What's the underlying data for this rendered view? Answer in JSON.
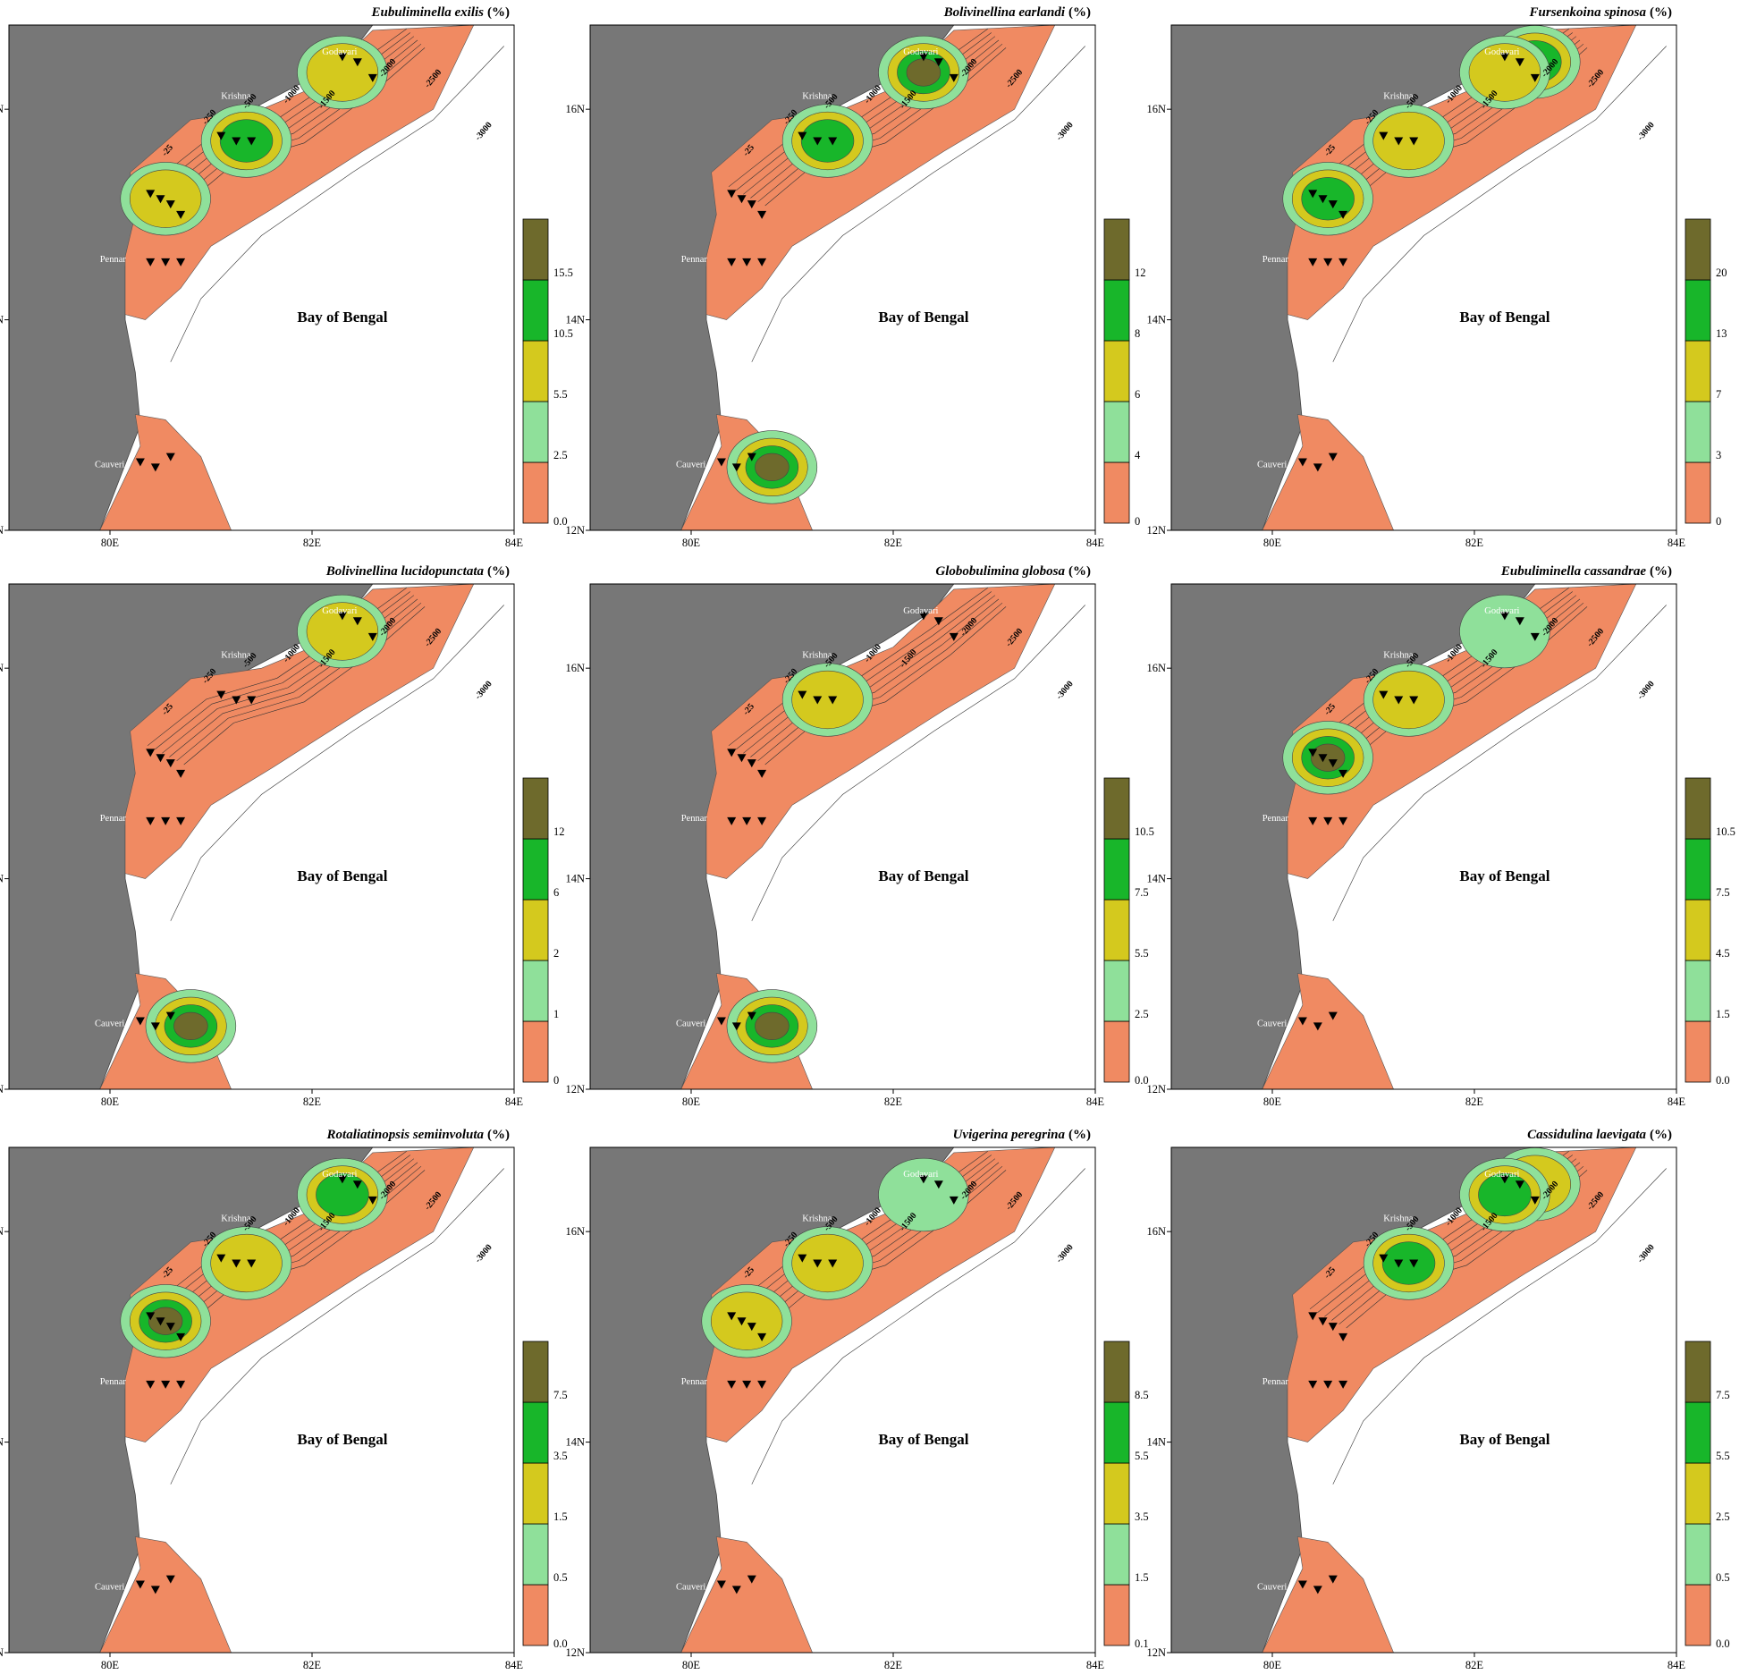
{
  "map_common": {
    "x_tick_labels": [
      "80E",
      "82E",
      "84E"
    ],
    "y_tick_labels": [
      "16N",
      "14N",
      "12N"
    ],
    "place_label": "Bay of Bengal",
    "rivers": [
      "Godavari",
      "Krishna",
      "Pennar",
      "Cauveri"
    ],
    "depth_labels": [
      "-25",
      "-250",
      "-500",
      "-1000",
      "-1500",
      "-2000",
      "-2500",
      "-3000"
    ],
    "colors": {
      "land": "#777777",
      "c1": "#f08a62",
      "c2": "#8fe09a",
      "c3": "#d4c91e",
      "c4": "#18b62a",
      "c5": "#6e6a2c",
      "sea": "#ffffff"
    }
  },
  "panels": [
    {
      "species": "Eubuliminella exilis",
      "unit": "(%)",
      "legend": [
        "0.0",
        "2.5",
        "5.5",
        "10.5",
        "15.5"
      ],
      "hotspots": [
        [
          2,
          2
        ],
        [
          1,
          3
        ],
        [
          0,
          2
        ]
      ]
    },
    {
      "species": "Bolivinellina earlandi",
      "unit": "(%)",
      "legend": [
        "0",
        "4",
        "6",
        "8",
        "12"
      ],
      "hotspots": [
        [
          2,
          4
        ],
        [
          1,
          3
        ],
        [
          5,
          4
        ]
      ]
    },
    {
      "species": "Fursenkoina spinosa",
      "unit": "(%)",
      "legend": [
        "0",
        "3",
        "7",
        "13",
        "20"
      ],
      "hotspots": [
        [
          3,
          3
        ],
        [
          1,
          2
        ],
        [
          0,
          3
        ],
        [
          2,
          2
        ]
      ]
    },
    {
      "species": "Bolivinellina lucidopunctata",
      "unit": "(%)",
      "legend": [
        "0",
        "1",
        "2",
        "6",
        "12"
      ],
      "hotspots": [
        [
          2,
          2
        ],
        [
          5,
          4
        ]
      ]
    },
    {
      "species": "Globobulimina globosa",
      "unit": "(%)",
      "legend": [
        "0.0",
        "2.5",
        "5.5",
        "7.5",
        "10.5"
      ],
      "hotspots": [
        [
          1,
          2
        ],
        [
          5,
          4
        ]
      ]
    },
    {
      "species": "Eubuliminella cassandrae",
      "unit": "(%)",
      "legend": [
        "0.0",
        "1.5",
        "4.5",
        "7.5",
        "10.5"
      ],
      "hotspots": [
        [
          0,
          4
        ],
        [
          1,
          2
        ],
        [
          2,
          1
        ]
      ]
    },
    {
      "species": "Rotaliatinopsis semiinvoluta",
      "unit": "(%)",
      "legend": [
        "0.0",
        "0.5",
        "1.5",
        "3.5",
        "7.5"
      ],
      "hotspots": [
        [
          0,
          4
        ],
        [
          1,
          2
        ],
        [
          2,
          3
        ]
      ]
    },
    {
      "species": "Uvigerina peregrina",
      "unit": "(%)",
      "legend": [
        "0.1",
        "1.5",
        "3.5",
        "5.5",
        "8.5"
      ],
      "hotspots": [
        [
          0,
          2
        ],
        [
          1,
          2
        ],
        [
          2,
          1
        ]
      ]
    },
    {
      "species": "Cassidulina laevigata",
      "unit": "(%)",
      "legend": [
        "0.0",
        "0.5",
        "2.5",
        "5.5",
        "7.5"
      ],
      "hotspots": [
        [
          1,
          3
        ],
        [
          3,
          2
        ],
        [
          2,
          3
        ]
      ]
    }
  ]
}
